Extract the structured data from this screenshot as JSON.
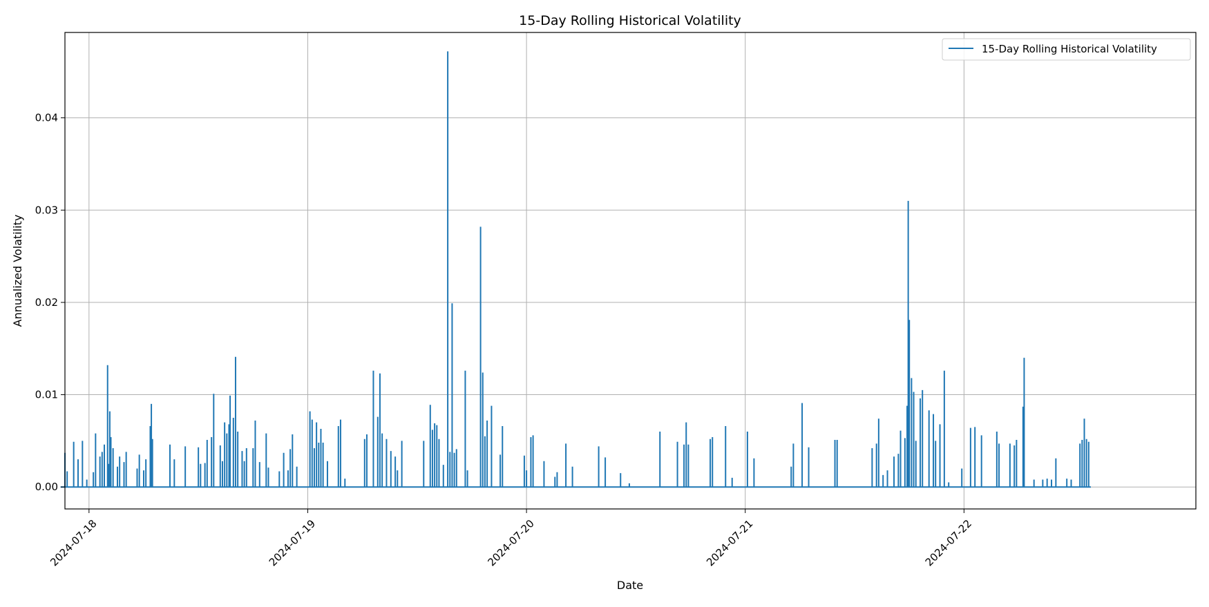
{
  "chart_data": {
    "type": "line",
    "title": "15-Day Rolling Historical Volatility",
    "xlabel": "Date",
    "ylabel": "Annualized Volatility",
    "x_start": "2024-07-17",
    "x_end": "2024-07-22",
    "xlim": [
      -0.11,
      5.06
    ],
    "ylim": [
      -0.00238,
      0.04925
    ],
    "x_ticks": [
      {
        "value": 0,
        "label": "2024-07-18"
      },
      {
        "value": 1,
        "label": "2024-07-19"
      },
      {
        "value": 2,
        "label": "2024-07-20"
      },
      {
        "value": 3,
        "label": "2024-07-21"
      },
      {
        "value": 4,
        "label": "2024-07-22"
      }
    ],
    "y_ticks": [
      {
        "value": 0.0,
        "label": "0.00"
      },
      {
        "value": 0.01,
        "label": "0.01"
      },
      {
        "value": 0.02,
        "label": "0.02"
      },
      {
        "value": 0.03,
        "label": "0.03"
      },
      {
        "value": 0.04,
        "label": "0.04"
      }
    ],
    "grid": true,
    "legend": {
      "position": "top-right",
      "entries": [
        "15-Day Rolling Historical Volatility"
      ]
    },
    "series": [
      {
        "name": "15-Day Rolling Historical Volatility",
        "color": "#1f77b4",
        "x_range": [
          -0.13,
          4.58
        ],
        "spikes": [
          [
            -0.11,
            0.0037
          ],
          [
            -0.1,
            0.0017
          ],
          [
            -0.07,
            0.0049
          ],
          [
            -0.05,
            0.003
          ],
          [
            -0.03,
            0.005
          ],
          [
            -0.01,
            0.0008
          ],
          [
            0.02,
            0.0016
          ],
          [
            0.03,
            0.0058
          ],
          [
            0.05,
            0.0033
          ],
          [
            0.06,
            0.0038
          ],
          [
            0.07,
            0.0046
          ],
          [
            0.09,
            0.0025
          ],
          [
            0.085,
            0.0132
          ],
          [
            0.095,
            0.0082
          ],
          [
            0.1,
            0.0054
          ],
          [
            0.11,
            0.0042
          ],
          [
            0.13,
            0.0022
          ],
          [
            0.14,
            0.0033
          ],
          [
            0.16,
            0.0027
          ],
          [
            0.17,
            0.0038
          ],
          [
            0.22,
            0.002
          ],
          [
            0.23,
            0.0035
          ],
          [
            0.25,
            0.0018
          ],
          [
            0.26,
            0.003
          ],
          [
            0.28,
            0.0066
          ],
          [
            0.285,
            0.009
          ],
          [
            0.29,
            0.0052
          ],
          [
            0.37,
            0.0046
          ],
          [
            0.39,
            0.003
          ],
          [
            0.44,
            0.0044
          ],
          [
            0.5,
            0.0043
          ],
          [
            0.51,
            0.0025
          ],
          [
            0.53,
            0.0026
          ],
          [
            0.54,
            0.0051
          ],
          [
            0.56,
            0.0054
          ],
          [
            0.57,
            0.0035
          ],
          [
            0.57,
            0.0101
          ],
          [
            0.6,
            0.0045
          ],
          [
            0.61,
            0.0028
          ],
          [
            0.62,
            0.007
          ],
          [
            0.63,
            0.0058
          ],
          [
            0.64,
            0.0068
          ],
          [
            0.645,
            0.0099
          ],
          [
            0.66,
            0.0075
          ],
          [
            0.67,
            0.0141
          ],
          [
            0.68,
            0.006
          ],
          [
            0.7,
            0.0039
          ],
          [
            0.71,
            0.0028
          ],
          [
            0.72,
            0.0042
          ],
          [
            0.75,
            0.0042
          ],
          [
            0.76,
            0.0072
          ],
          [
            0.78,
            0.0027
          ],
          [
            0.81,
            0.0058
          ],
          [
            0.82,
            0.0021
          ],
          [
            0.87,
            0.0017
          ],
          [
            0.89,
            0.0037
          ],
          [
            0.91,
            0.0018
          ],
          [
            0.92,
            0.0041
          ],
          [
            0.93,
            0.0057
          ],
          [
            0.95,
            0.0022
          ],
          [
            1.01,
            0.0082
          ],
          [
            1.02,
            0.0073
          ],
          [
            1.03,
            0.0042
          ],
          [
            1.04,
            0.007
          ],
          [
            1.05,
            0.0048
          ],
          [
            1.06,
            0.0063
          ],
          [
            1.07,
            0.0048
          ],
          [
            1.09,
            0.0028
          ],
          [
            1.14,
            0.0066
          ],
          [
            1.15,
            0.0073
          ],
          [
            1.17,
            0.0009
          ],
          [
            1.26,
            0.0052
          ],
          [
            1.27,
            0.0057
          ],
          [
            1.3,
            0.0126
          ],
          [
            1.32,
            0.0076
          ],
          [
            1.33,
            0.0123
          ],
          [
            1.34,
            0.0058
          ],
          [
            1.36,
            0.0052
          ],
          [
            1.38,
            0.0039
          ],
          [
            1.4,
            0.0033
          ],
          [
            1.41,
            0.0018
          ],
          [
            1.43,
            0.005
          ],
          [
            1.53,
            0.005
          ],
          [
            1.56,
            0.0089
          ],
          [
            1.57,
            0.0062
          ],
          [
            1.58,
            0.0069
          ],
          [
            1.59,
            0.0067
          ],
          [
            1.6,
            0.0052
          ],
          [
            1.62,
            0.0024
          ],
          [
            1.64,
            0.0472
          ],
          [
            1.65,
            0.0038
          ],
          [
            1.66,
            0.0199
          ],
          [
            1.67,
            0.0037
          ],
          [
            1.68,
            0.0041
          ],
          [
            1.72,
            0.0126
          ],
          [
            1.73,
            0.0018
          ],
          [
            1.79,
            0.0282
          ],
          [
            1.8,
            0.0124
          ],
          [
            1.81,
            0.0055
          ],
          [
            1.82,
            0.0072
          ],
          [
            1.84,
            0.0088
          ],
          [
            1.88,
            0.0035
          ],
          [
            1.89,
            0.0066
          ],
          [
            1.99,
            0.0034
          ],
          [
            2.0,
            0.0018
          ],
          [
            2.02,
            0.0054
          ],
          [
            2.03,
            0.0056
          ],
          [
            2.08,
            0.0028
          ],
          [
            2.13,
            0.0011
          ],
          [
            2.14,
            0.0016
          ],
          [
            2.18,
            0.0047
          ],
          [
            2.21,
            0.0022
          ],
          [
            2.33,
            0.0044
          ],
          [
            2.36,
            0.0032
          ],
          [
            2.43,
            0.0015
          ],
          [
            2.47,
            0.0004
          ],
          [
            2.61,
            0.006
          ],
          [
            2.69,
            0.0049
          ],
          [
            2.72,
            0.0046
          ],
          [
            2.73,
            0.007
          ],
          [
            2.74,
            0.0046
          ],
          [
            2.84,
            0.0052
          ],
          [
            2.85,
            0.0054
          ],
          [
            2.91,
            0.0066
          ],
          [
            2.94,
            0.001
          ],
          [
            3.01,
            0.006
          ],
          [
            3.04,
            0.0031
          ],
          [
            3.21,
            0.0022
          ],
          [
            3.22,
            0.0047
          ],
          [
            3.26,
            0.0091
          ],
          [
            3.29,
            0.0043
          ],
          [
            3.41,
            0.0051
          ],
          [
            3.42,
            0.0051
          ],
          [
            3.58,
            0.0042
          ],
          [
            3.6,
            0.0047
          ],
          [
            3.61,
            0.0074
          ],
          [
            3.63,
            0.0013
          ],
          [
            3.65,
            0.0018
          ],
          [
            3.68,
            0.0033
          ],
          [
            3.7,
            0.0036
          ],
          [
            3.71,
            0.0061
          ],
          [
            3.73,
            0.0053
          ],
          [
            3.74,
            0.0088
          ],
          [
            3.745,
            0.031
          ],
          [
            3.75,
            0.0181
          ],
          [
            3.76,
            0.0118
          ],
          [
            3.77,
            0.0103
          ],
          [
            3.78,
            0.005
          ],
          [
            3.8,
            0.0096
          ],
          [
            3.81,
            0.0105
          ],
          [
            3.84,
            0.0083
          ],
          [
            3.86,
            0.0079
          ],
          [
            3.87,
            0.005
          ],
          [
            3.89,
            0.0068
          ],
          [
            3.91,
            0.0126
          ],
          [
            3.93,
            0.0005
          ],
          [
            3.99,
            0.002
          ],
          [
            4.03,
            0.0064
          ],
          [
            4.05,
            0.0065
          ],
          [
            4.08,
            0.0056
          ],
          [
            4.15,
            0.006
          ],
          [
            4.16,
            0.0047
          ],
          [
            4.21,
            0.0047
          ],
          [
            4.23,
            0.0045
          ],
          [
            4.24,
            0.0051
          ],
          [
            4.27,
            0.0087
          ],
          [
            4.275,
            0.014
          ],
          [
            4.32,
            0.0008
          ],
          [
            4.36,
            0.0008
          ],
          [
            4.38,
            0.0009
          ],
          [
            4.4,
            0.0008
          ],
          [
            4.42,
            0.0031
          ],
          [
            4.47,
            0.0009
          ],
          [
            4.49,
            0.0008
          ],
          [
            4.53,
            0.0047
          ],
          [
            4.54,
            0.0051
          ],
          [
            4.55,
            0.0074
          ],
          [
            4.56,
            0.0052
          ],
          [
            4.57,
            0.0049
          ]
        ]
      }
    ]
  }
}
